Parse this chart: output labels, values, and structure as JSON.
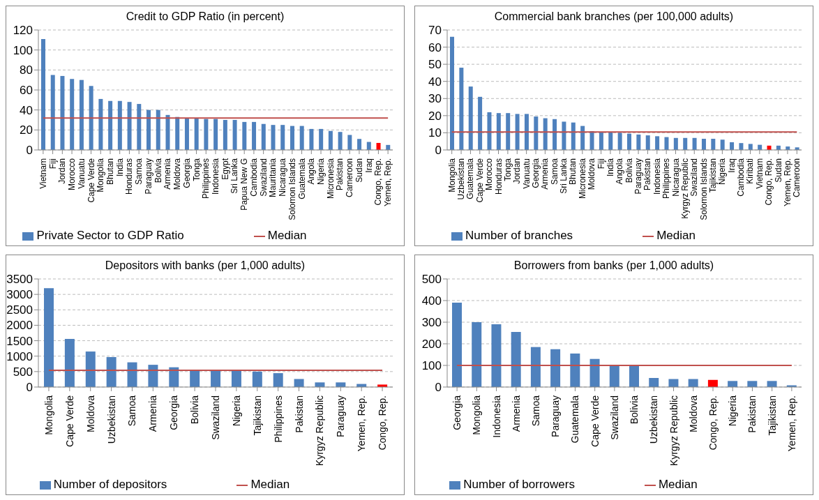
{
  "chart_data": [
    {
      "type": "bar",
      "title": "Credit to GDP Ratio (in percent)",
      "categories": [
        "Vietnam",
        "Fiji",
        "Jordan",
        "Morocco",
        "Vanuatu",
        "Cape Verde",
        "Mongolia",
        "Bhutan",
        "India",
        "Honduras",
        "Samoa",
        "Paraguay",
        "Bolivia",
        "Armenia",
        "Moldova",
        "Georgia",
        "Tonga",
        "Philippines",
        "Indonesia",
        "Egypt",
        "Sri Lanka",
        "Papua New G",
        "Cambodia",
        "Swaziland",
        "Mauritania",
        "Nicaragua",
        "Solomon Islands",
        "Guatemala",
        "Angola",
        "Nigeria",
        "Micronesia",
        "Pakistan",
        "Cameroon",
        "Sudan",
        "Iraq",
        "Congo, Rep.",
        "Yemen, Rep."
      ],
      "series": [
        {
          "name": "Private Sector to GDP Ratio",
          "color": "#4f81bd",
          "colors": [
            "#4f81bd",
            "#4f81bd",
            "#4f81bd",
            "#4f81bd",
            "#4f81bd",
            "#4f81bd",
            "#4f81bd",
            "#4f81bd",
            "#4f81bd",
            "#4f81bd",
            "#4f81bd",
            "#4f81bd",
            "#4f81bd",
            "#4f81bd",
            "#4f81bd",
            "#4f81bd",
            "#4f81bd",
            "#4f81bd",
            "#4f81bd",
            "#4f81bd",
            "#4f81bd",
            "#4f81bd",
            "#4f81bd",
            "#4f81bd",
            "#4f81bd",
            "#4f81bd",
            "#4f81bd",
            "#4f81bd",
            "#4f81bd",
            "#4f81bd",
            "#4f81bd",
            "#4f81bd",
            "#4f81bd",
            "#4f81bd",
            "#4f81bd",
            "#ff0000",
            "#4f81bd"
          ],
          "values": [
            111,
            75,
            74,
            71,
            70,
            64,
            51,
            49,
            49,
            48,
            46,
            40,
            40,
            35,
            33,
            32,
            32,
            31,
            31,
            30,
            30,
            28,
            28,
            26,
            25,
            25,
            24,
            24,
            21,
            21,
            19,
            18,
            15,
            11,
            8,
            7,
            5
          ]
        },
        {
          "name": "Median",
          "type": "line",
          "color": "#c0504d",
          "values": [
            32,
            32,
            32,
            32,
            32,
            32,
            32,
            32,
            32,
            32,
            32,
            32,
            32,
            32,
            32,
            32,
            32,
            32,
            32,
            32,
            32,
            32,
            32,
            32,
            32,
            32,
            32,
            32,
            32,
            32,
            32,
            32,
            32,
            32,
            32,
            32,
            32
          ]
        }
      ],
      "ylim": [
        0,
        120
      ],
      "yticks": [
        0,
        20,
        40,
        60,
        80,
        100,
        120
      ],
      "grid": "y",
      "legend": "bottom"
    },
    {
      "type": "bar",
      "title": "Commercial bank branches (per 100,000 adults)",
      "categories": [
        "Mongolia",
        "Uzbekistan",
        "Guatemala",
        "Cape Verde",
        "Morocco",
        "Honduras",
        "Tonga",
        "Jordan",
        "Vanuatu",
        "Georgia",
        "Armenia",
        "Samoa",
        "Sri Lanka",
        "Bhutan",
        "Micronesia",
        "Moldova",
        "Fiji",
        "India",
        "Angola",
        "Bolivia",
        "Paraguay",
        "Pakistan",
        "Indonesia",
        "Philippines",
        "Nicaragua",
        "Kyrgyz Republic",
        "Swaziland",
        "Solomon Islands",
        "Tajikistan",
        "Nigeria",
        "Iraq",
        "Cambodia",
        "Kiribati",
        "Vietnam",
        "Congo, Rep.",
        "Sudan",
        "Yemen, Rep.",
        "Cameroon"
      ],
      "series": [
        {
          "name": "Number of branches",
          "color": "#4f81bd",
          "colors": [
            "#4f81bd",
            "#4f81bd",
            "#4f81bd",
            "#4f81bd",
            "#4f81bd",
            "#4f81bd",
            "#4f81bd",
            "#4f81bd",
            "#4f81bd",
            "#4f81bd",
            "#4f81bd",
            "#4f81bd",
            "#4f81bd",
            "#4f81bd",
            "#4f81bd",
            "#4f81bd",
            "#4f81bd",
            "#4f81bd",
            "#4f81bd",
            "#4f81bd",
            "#4f81bd",
            "#4f81bd",
            "#4f81bd",
            "#4f81bd",
            "#4f81bd",
            "#4f81bd",
            "#4f81bd",
            "#4f81bd",
            "#4f81bd",
            "#4f81bd",
            "#4f81bd",
            "#4f81bd",
            "#4f81bd",
            "#4f81bd",
            "#ff0000",
            "#4f81bd",
            "#4f81bd",
            "#4f81bd"
          ],
          "values": [
            66,
            48,
            37,
            31,
            22,
            21.5,
            21.5,
            21,
            21,
            19.5,
            18.5,
            18,
            16.5,
            16,
            14,
            11,
            10.5,
            10.5,
            10,
            9.5,
            9,
            8.5,
            8,
            7.5,
            7,
            7,
            7,
            6.5,
            6.5,
            6,
            4.5,
            4,
            3.5,
            3,
            2.5,
            2.5,
            2,
            1.5
          ]
        },
        {
          "name": "Median",
          "type": "line",
          "color": "#c0504d",
          "values": [
            10.5,
            10.5,
            10.5,
            10.5,
            10.5,
            10.5,
            10.5,
            10.5,
            10.5,
            10.5,
            10.5,
            10.5,
            10.5,
            10.5,
            10.5,
            10.5,
            10.5,
            10.5,
            10.5,
            10.5,
            10.5,
            10.5,
            10.5,
            10.5,
            10.5,
            10.5,
            10.5,
            10.5,
            10.5,
            10.5,
            10.5,
            10.5,
            10.5,
            10.5,
            10.5,
            10.5,
            10.5,
            10.5
          ]
        }
      ],
      "ylim": [
        0,
        70
      ],
      "yticks": [
        0,
        10,
        20,
        30,
        40,
        50,
        60,
        70
      ],
      "grid": "y",
      "legend": "bottom"
    },
    {
      "type": "bar",
      "title": "Depositors with banks (per 1,000 adults)",
      "categories": [
        "Mongolia",
        "Cape Verde",
        "Moldova",
        "Uzbekistan",
        "Samoa",
        "Armenia",
        "Georgia",
        "Bolivia",
        "Swaziland",
        "Nigeria",
        "Tajikistan",
        "Philippines",
        "Pakistan",
        "Kyrgyz Republic",
        "Paraguay",
        "Yemen, Rep.",
        "Congo, Rep."
      ],
      "series": [
        {
          "name": "Number of depositors",
          "color": "#4f81bd",
          "colors": [
            "#4f81bd",
            "#4f81bd",
            "#4f81bd",
            "#4f81bd",
            "#4f81bd",
            "#4f81bd",
            "#4f81bd",
            "#4f81bd",
            "#4f81bd",
            "#4f81bd",
            "#4f81bd",
            "#4f81bd",
            "#4f81bd",
            "#4f81bd",
            "#4f81bd",
            "#4f81bd",
            "#ff0000"
          ],
          "values": [
            3200,
            1560,
            1150,
            970,
            800,
            720,
            640,
            550,
            540,
            520,
            500,
            450,
            260,
            150,
            150,
            100,
            80
          ]
        },
        {
          "name": "Median",
          "type": "line",
          "color": "#c0504d",
          "values": [
            540,
            540,
            540,
            540,
            540,
            540,
            540,
            540,
            540,
            540,
            540,
            540,
            540,
            540,
            540,
            540,
            540
          ]
        }
      ],
      "ylim": [
        0,
        3500
      ],
      "yticks": [
        0,
        500,
        1000,
        1500,
        2000,
        2500,
        3000,
        3500
      ],
      "grid": "y",
      "legend": "bottom"
    },
    {
      "type": "bar",
      "title": "Borrowers from banks (per 1,000 adults)",
      "categories": [
        "Georgia",
        "Mongolia",
        "Indonesia",
        "Armenia",
        "Samoa",
        "Paraguay",
        "Guatemala",
        "Cape Verde",
        "Swaziland",
        "Bolivia",
        "Uzbekistan",
        "Kyrgyz Republic",
        "Moldova",
        "Congo, Rep.",
        "Nigeria",
        "Pakistan",
        "Tajikistan",
        "Yemen, Rep."
      ],
      "series": [
        {
          "name": "Number of borrowers",
          "color": "#4f81bd",
          "colors": [
            "#4f81bd",
            "#4f81bd",
            "#4f81bd",
            "#4f81bd",
            "#4f81bd",
            "#4f81bd",
            "#4f81bd",
            "#4f81bd",
            "#4f81bd",
            "#4f81bd",
            "#4f81bd",
            "#4f81bd",
            "#4f81bd",
            "#ff0000",
            "#4f81bd",
            "#4f81bd",
            "#4f81bd",
            "#4f81bd"
          ],
          "values": [
            390,
            300,
            290,
            255,
            185,
            175,
            155,
            130,
            100,
            100,
            42,
            37,
            37,
            33,
            28,
            28,
            28,
            8
          ]
        },
        {
          "name": "Median",
          "type": "line",
          "color": "#c0504d",
          "values": [
            100,
            100,
            100,
            100,
            100,
            100,
            100,
            100,
            100,
            100,
            100,
            100,
            100,
            100,
            100,
            100,
            100,
            100
          ]
        }
      ],
      "ylim": [
        0,
        500
      ],
      "yticks": [
        0,
        100,
        200,
        300,
        400,
        500
      ],
      "grid": "y",
      "legend": "bottom"
    }
  ]
}
